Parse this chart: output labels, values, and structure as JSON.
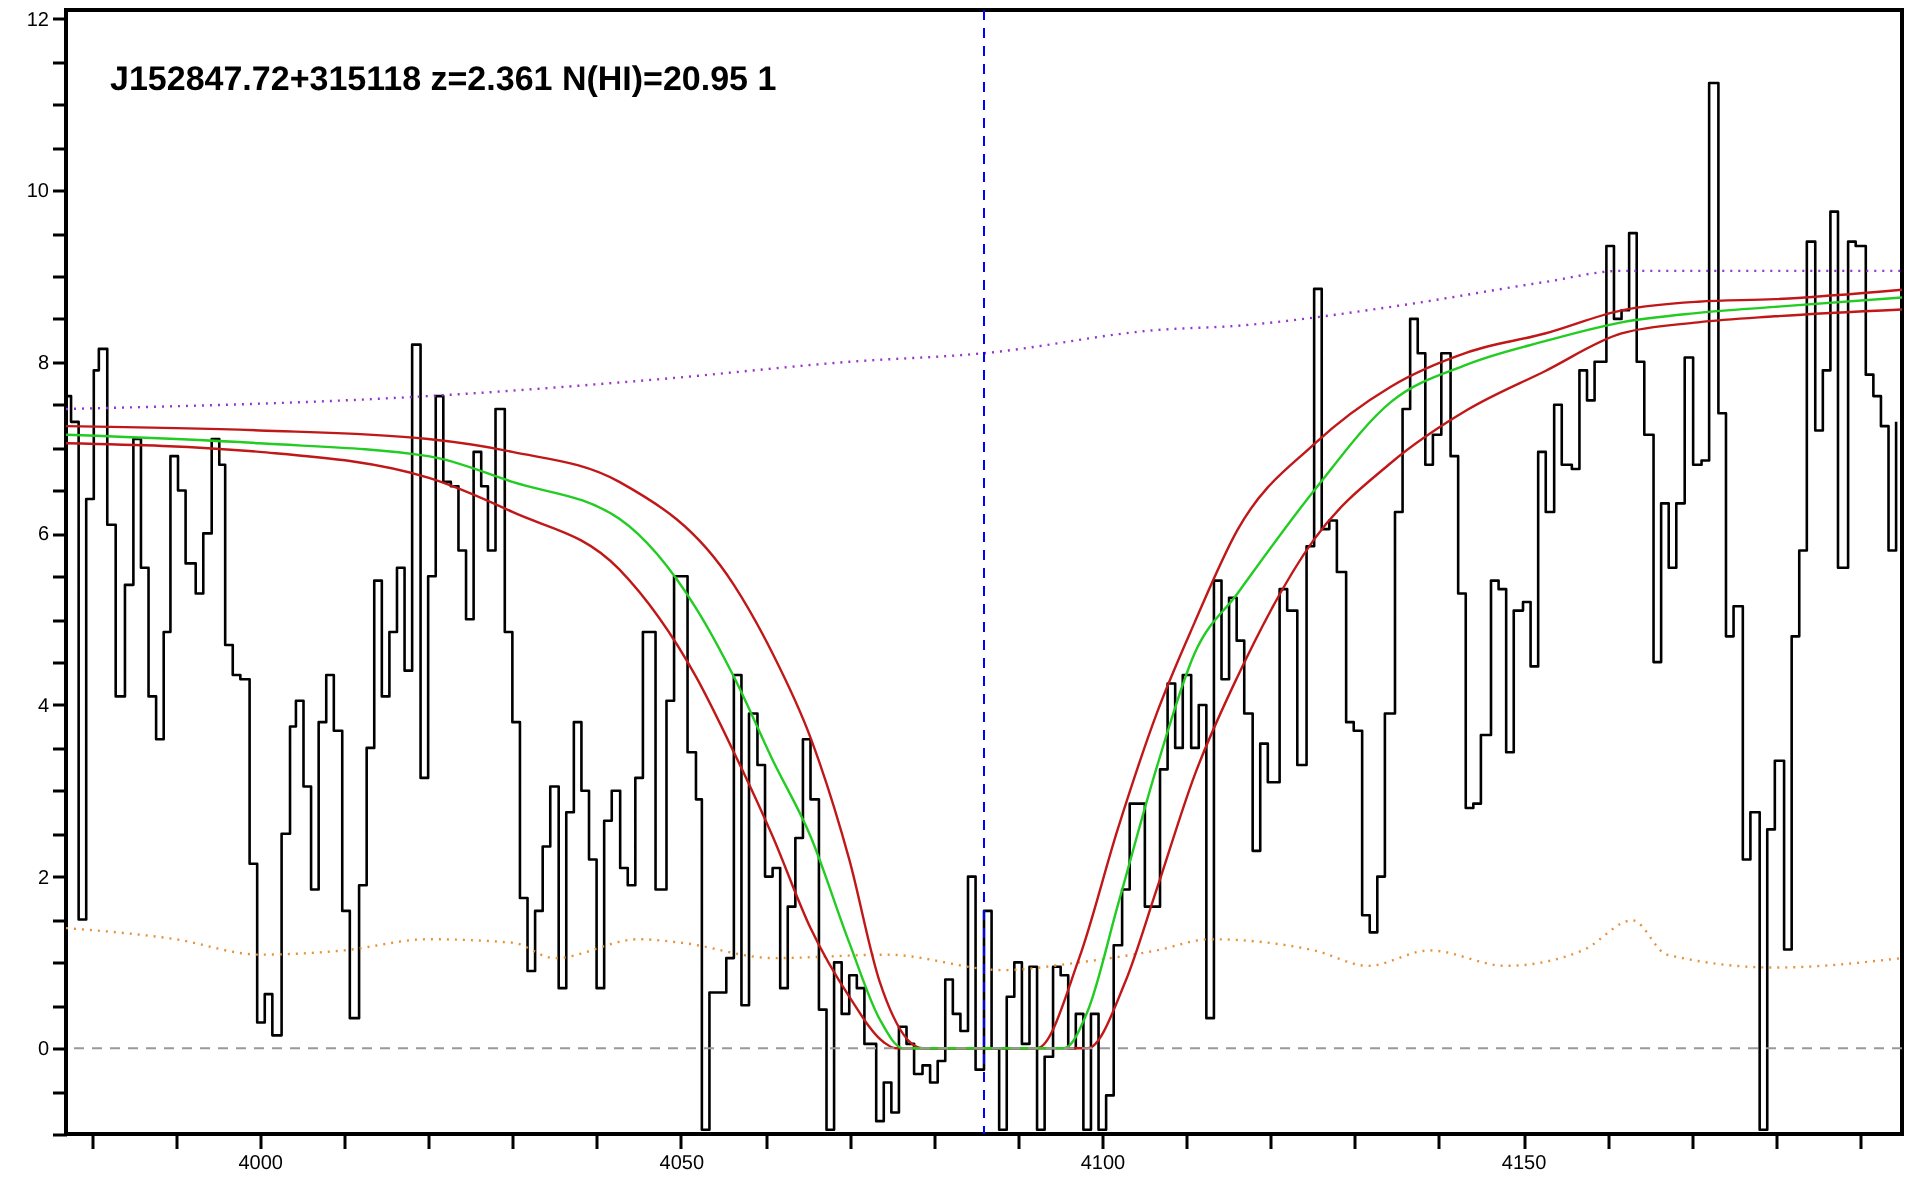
{
  "chart_data": {
    "type": "line",
    "xlim": [
      3977,
      4195
    ],
    "ylim": [
      -1,
      12.1
    ],
    "xticks": [
      {
        "value": 3980,
        "label": null
      },
      {
        "value": 3990,
        "label": null
      },
      4000,
      {
        "value": 4010,
        "label": null
      },
      {
        "value": 4020,
        "label": null
      },
      {
        "value": 4030,
        "label": null
      },
      {
        "value": 4040,
        "label": null
      },
      4050,
      {
        "value": 4060,
        "label": null
      },
      {
        "value": 4070,
        "label": null
      },
      {
        "value": 4080,
        "label": null
      },
      {
        "value": 4090,
        "label": null
      },
      4100,
      {
        "value": 4110,
        "label": null
      },
      {
        "value": 4120,
        "label": null
      },
      {
        "value": 4130,
        "label": null
      },
      {
        "value": 4140,
        "label": null
      },
      4150,
      {
        "value": 4160,
        "label": null
      },
      {
        "value": 4170,
        "label": null
      },
      {
        "value": 4180,
        "label": null
      },
      {
        "value": 4190,
        "label": null
      }
    ],
    "yticks": [
      {
        "value": -1,
        "label": null
      },
      {
        "value": -0.5,
        "label": null
      },
      0,
      {
        "value": 0.5,
        "label": null
      },
      {
        "value": 1,
        "label": null
      },
      {
        "value": 1.5,
        "label": null
      },
      2,
      {
        "value": 2.5,
        "label": null
      },
      {
        "value": 3,
        "label": null
      },
      {
        "value": 3.5,
        "label": null
      },
      4,
      {
        "value": 4.5,
        "label": null
      },
      {
        "value": 5,
        "label": null
      },
      {
        "value": 5.5,
        "label": null
      },
      6,
      {
        "value": 6.5,
        "label": null
      },
      {
        "value": 7,
        "label": null
      },
      {
        "value": 7.5,
        "label": null
      },
      8,
      {
        "value": 8.5,
        "label": null
      },
      {
        "value": 9,
        "label": null
      },
      {
        "value": 9.5,
        "label": null
      },
      10,
      {
        "value": 10.5,
        "label": null
      },
      {
        "value": 11,
        "label": null
      },
      {
        "value": 11.5,
        "label": null
      },
      12
    ],
    "grid": false,
    "marker": "none",
    "annotations": [
      "J152847.72+315118 z=2.361 N(HI)=20.95 1"
    ],
    "ref_lines": [
      {
        "axis": "x",
        "value": 4086,
        "color": "#0000ff",
        "line_style": "dashed"
      },
      {
        "axis": "y",
        "value": 0,
        "color": "#999999",
        "line_style": "dashed"
      }
    ],
    "series": [
      {
        "type": "step",
        "color": "#000000",
        "x": [
          3977,
          3977.6,
          3978.5,
          3979.4,
          3980.3,
          3980.9,
          3981.9,
          3982.9,
          3984.0,
          3985.0,
          3985.9,
          3986.8,
          3987.7,
          3988.6,
          3989.4,
          3990.3,
          3991.2,
          3992.4,
          3993.3,
          3994.3,
          3995.2,
          3995.9,
          3996.8,
          3997.7,
          3998.8,
          3999.7,
          4000.6,
          4001.5,
          4002.6,
          4003.6,
          4004.3,
          4005.2,
          4006.1,
          4007.0,
          4007.9,
          4008.8,
          4009.8,
          4010.7,
          4011.8,
          4012.7,
          4013.6,
          4014.5,
          4015.4,
          4016.3,
          4017.2,
          4018.1,
          4019.1,
          4020.0,
          4020.9,
          4021.8,
          4022.7,
          4023.6,
          4024.5,
          4025.4,
          4026.3,
          4027.1,
          4028.0,
          4029.1,
          4030.0,
          4030.9,
          4031.8,
          4032.7,
          4033.6,
          4034.5,
          4035.5,
          4036.4,
          4037.3,
          4038.2,
          4039.1,
          4040.0,
          4040.9,
          4041.8,
          4042.8,
          4043.7,
          4044.6,
          4045.5,
          4047.0,
          4048.3,
          4049.2,
          4050.8,
          4051.8,
          4052.5,
          4053.4,
          4055.4,
          4056.3,
          4057.2,
          4058.1,
          4059.1,
          4060.0,
          4060.9,
          4061.8,
          4062.7,
          4063.6,
          4064.5,
          4065.4,
          4066.4,
          4067.3,
          4068.2,
          4069.1,
          4070.0,
          4070.9,
          4071.8,
          4073.2,
          4074.1,
          4075.0,
          4075.9,
          4076.8,
          4077.7,
          4078.7,
          4079.6,
          4080.5,
          4081.4,
          4082.3,
          4083.2,
          4084.1,
          4085.0,
          4086.0,
          4086.9,
          4087.8,
          4088.7,
          4089.6,
          4090.5,
          4091.4,
          4092.3,
          4093.2,
          4094.2,
          4095.1,
          4096.0,
          4096.9,
          4097.8,
          4098.7,
          4099.6,
          4100.5,
          4101.4,
          4102.4,
          4103.3,
          4105.1,
          4106.9,
          4107.8,
          4108.7,
          4109.6,
          4110.6,
          4111.5,
          4112.4,
          4113.3,
          4114.2,
          4115.1,
          4116.0,
          4116.9,
          4117.9,
          4118.8,
          4119.7,
          4121.1,
          4122.0,
          4123.2,
          4124.3,
          4125.2,
          4126.1,
          4127.0,
          4127.9,
          4129.0,
          4129.9,
          4130.9,
          4131.8,
          4132.7,
          4133.6,
          4134.8,
          4135.7,
          4136.6,
          4137.5,
          4138.4,
          4139.3,
          4140.3,
          4141.4,
          4142.3,
          4143.2,
          4144.1,
          4145.0,
          4146.2,
          4147.1,
          4148.0,
          4148.9,
          4150.0,
          4150.9,
          4151.8,
          4152.7,
          4153.7,
          4154.6,
          4155.8,
          4156.7,
          4157.6,
          4158.5,
          4159.9,
          4160.8,
          4161.7,
          4162.6,
          4163.5,
          4164.4,
          4165.5,
          4166.4,
          4167.3,
          4168.2,
          4169.2,
          4170.2,
          4171.2,
          4172.1,
          4173.2,
          4174.1,
          4175.0,
          4176.1,
          4177.0,
          4178.1,
          4179.0,
          4179.9,
          4181.0,
          4181.9,
          4182.8,
          4183.7,
          4184.7,
          4185.6,
          4186.5,
          4187.4,
          4188.6,
          4189.5,
          4190.7,
          4191.6,
          4192.5,
          4193.4,
          4194.3
        ],
        "values": [
          7.6,
          7.3,
          1.5,
          6.4,
          7.9,
          8.15,
          6.1,
          4.1,
          5.4,
          7.1,
          5.6,
          4.1,
          3.6,
          4.85,
          6.9,
          6.5,
          5.65,
          5.3,
          6.0,
          7.1,
          6.8,
          4.7,
          4.35,
          4.3,
          2.15,
          0.3,
          0.63,
          0.15,
          2.5,
          3.75,
          4.05,
          3.05,
          1.85,
          3.8,
          4.35,
          3.7,
          1.6,
          0.35,
          1.9,
          3.5,
          5.45,
          4.1,
          4.85,
          5.6,
          4.4,
          8.2,
          3.15,
          5.5,
          7.6,
          6.6,
          6.55,
          5.8,
          5.0,
          6.95,
          6.55,
          5.8,
          7.45,
          4.85,
          3.8,
          1.75,
          0.9,
          1.6,
          2.35,
          3.05,
          0.7,
          2.75,
          3.8,
          3.0,
          2.2,
          0.7,
          2.65,
          3.0,
          2.1,
          1.9,
          3.15,
          4.85,
          1.85,
          4.05,
          5.5,
          3.45,
          2.9,
          -0.95,
          0.65,
          1.05,
          4.35,
          0.5,
          3.9,
          3.3,
          2.0,
          2.1,
          0.7,
          1.65,
          2.45,
          3.6,
          2.9,
          0.45,
          -0.95,
          1.0,
          0.4,
          0.85,
          0.7,
          0.05,
          -0.85,
          -0.4,
          -0.75,
          0.25,
          0.05,
          -0.3,
          -0.2,
          -0.4,
          -0.15,
          0.8,
          0.4,
          0.2,
          2.0,
          -0.25,
          1.6,
          0,
          -0.95,
          0.6,
          1.0,
          0.05,
          0.95,
          -0.95,
          -0.1,
          0.95,
          0.85,
          0,
          0.4,
          -0.95,
          0.4,
          -0.95,
          -0.55,
          1.2,
          1.85,
          2.85,
          1.65,
          3.25,
          4.25,
          3.5,
          4.35,
          3.5,
          4.0,
          0.35,
          5.45,
          4.3,
          5.25,
          4.75,
          3.9,
          2.3,
          3.55,
          3.1,
          5.35,
          5.1,
          3.3,
          5.85,
          8.85,
          6.05,
          6.15,
          5.55,
          3.8,
          3.7,
          1.55,
          1.35,
          2.0,
          3.9,
          6.25,
          7.45,
          8.5,
          8.1,
          6.8,
          7.15,
          8.1,
          6.9,
          5.3,
          2.8,
          2.85,
          3.65,
          5.45,
          5.35,
          3.45,
          5.1,
          5.2,
          4.45,
          6.95,
          6.25,
          7.5,
          6.8,
          6.75,
          7.9,
          7.55,
          8.0,
          9.35,
          8.5,
          8.6,
          9.5,
          8.0,
          7.15,
          4.5,
          6.35,
          5.6,
          6.35,
          8.05,
          6.8,
          6.85,
          11.25,
          7.4,
          4.8,
          5.15,
          2.2,
          2.75,
          -0.95,
          2.55,
          3.35,
          1.15,
          4.8,
          5.8,
          9.4,
          7.2,
          7.9,
          9.75,
          5.6,
          9.4,
          9.35,
          7.85,
          7.6,
          7.25,
          5.8,
          7.3
        ]
      },
      {
        "color": "#9933cc",
        "line_style": "dotted",
        "x": [
          3977,
          4020,
          4047.8,
          4070,
          4086,
          4106.5,
          4116.1,
          4134.3,
          4152.6,
          4161.7,
          4195
        ],
        "values": [
          7.45,
          7.6,
          7.8,
          8.0,
          8.1,
          8.37,
          8.42,
          8.64,
          8.93,
          9.06,
          9.06
        ]
      },
      {
        "color": "#e8913a",
        "line_style": "dotted",
        "x": [
          3977,
          3990,
          4000,
          4010,
          4020,
          4030,
          4035,
          4045,
          4050,
          4061,
          4074.5,
          4088.2,
          4097.3,
          4106.5,
          4112.8,
          4125.2,
          4131.6,
          4138.9,
          4148,
          4157.1,
          4163,
          4167.1,
          4179.9,
          4195
        ],
        "values": [
          1.4,
          1.27,
          1.09,
          1.14,
          1.27,
          1.23,
          1.05,
          1.27,
          1.23,
          1.05,
          1.09,
          0.91,
          1.0,
          1.14,
          1.27,
          1.14,
          0.96,
          1.14,
          0.96,
          1.14,
          1.49,
          1.09,
          0.94,
          1.05
        ]
      },
      {
        "color": "#c01818",
        "line_style": "solid",
        "x": [
          3977,
          4000,
          4020,
          4030,
          4042.7,
          4056.3,
          4060.9,
          4065.4,
          4070.0,
          4073.6,
          4078.7,
          4092.3,
          4097.3,
          4101.9,
          4106.5,
          4111.0,
          4116.1,
          4125.2,
          4134.3,
          4143.4,
          4152.6,
          4161.7,
          4170.8,
          4179.9,
          4195
        ],
        "values": [
          7.25,
          7.2,
          7.1,
          6.95,
          6.6,
          5.4,
          4.6,
          3.62,
          2.2,
          0.78,
          0,
          0,
          1.05,
          2.56,
          3.9,
          4.96,
          6.04,
          7.04,
          7.71,
          8.11,
          8.33,
          8.6,
          8.7,
          8.73,
          8.84
        ]
      },
      {
        "color": "#c01818",
        "line_style": "solid",
        "x": [
          3977,
          4000,
          4020,
          4030,
          4042.7,
          4051.8,
          4056.3,
          4060.9,
          4065.4,
          4070.0,
          4074.1,
          4075.5,
          4098.3,
          4102.8,
          4106.5,
          4111.0,
          4116.1,
          4125.2,
          4134.3,
          4143.4,
          4152.6,
          4161.7,
          4170.8,
          4179.9,
          4195
        ],
        "values": [
          7.05,
          6.95,
          6.65,
          6.25,
          5.58,
          4.33,
          3.45,
          2.47,
          1.4,
          0.6,
          0.07,
          0,
          0,
          0.78,
          1.85,
          3.18,
          4.33,
          5.93,
          6.82,
          7.44,
          7.89,
          8.33,
          8.46,
          8.53,
          8.61
        ]
      },
      {
        "color": "#22cc22",
        "line_style": "solid",
        "x": [
          3977,
          4000,
          4020,
          4030,
          4042.7,
          4051.8,
          4056.3,
          4060.9,
          4065.4,
          4070.0,
          4073.6,
          4076.4,
          4095.5,
          4098.3,
          4101.9,
          4106.5,
          4111.0,
          4116.1,
          4125.2,
          4134.3,
          4143.4,
          4152.6,
          4161.7,
          4170.8,
          4179.9,
          4195
        ],
        "values": [
          7.15,
          7.05,
          6.9,
          6.6,
          6.17,
          5.13,
          4.33,
          3.36,
          2.47,
          1.23,
          0.34,
          0,
          0,
          0.43,
          1.67,
          3.27,
          4.6,
          5.3,
          6.5,
          7.53,
          7.97,
          8.24,
          8.46,
          8.57,
          8.64,
          8.75
        ]
      }
    ]
  }
}
